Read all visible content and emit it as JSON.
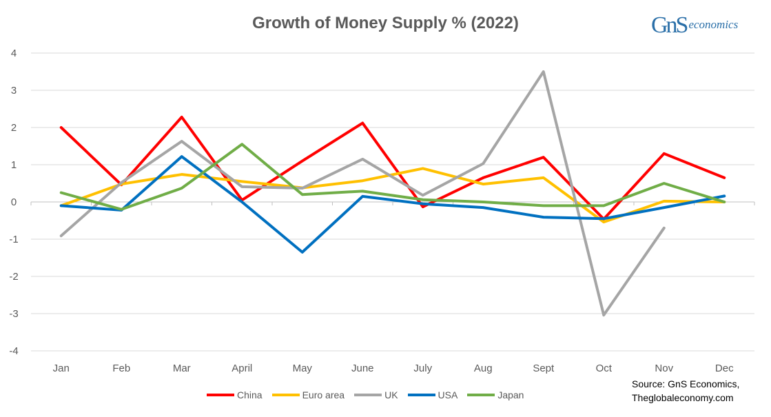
{
  "chart_data": {
    "type": "line",
    "title": "Growth of Money Supply % (2022)",
    "categories": [
      "Jan",
      "Feb",
      "Mar",
      "April",
      "May",
      "June",
      "July",
      "Aug",
      "Sept",
      "Oct",
      "Nov",
      "Dec"
    ],
    "ylim": [
      -4,
      4
    ],
    "yticks": [
      "4",
      "3",
      "2",
      "1",
      "0",
      "-1",
      "-2",
      "-3",
      "-4"
    ],
    "grid": true,
    "legend_position": "bottom",
    "series": [
      {
        "name": "China",
        "color": "#ff0000",
        "values": [
          2.0,
          0.46,
          2.28,
          0.05,
          1.1,
          2.12,
          -0.13,
          0.65,
          1.2,
          -0.46,
          1.3,
          0.65
        ]
      },
      {
        "name": "Euro area",
        "color": "#ffc000",
        "values": [
          -0.1,
          0.48,
          0.74,
          0.55,
          0.38,
          0.57,
          0.9,
          0.48,
          0.65,
          -0.54,
          0.02,
          0.0
        ]
      },
      {
        "name": "UK",
        "color": "#a5a5a5",
        "values": [
          -0.91,
          0.52,
          1.63,
          0.41,
          0.37,
          1.15,
          0.18,
          1.03,
          3.5,
          -3.04,
          -0.7,
          null
        ]
      },
      {
        "name": "USA",
        "color": "#0070c0",
        "values": [
          -0.1,
          -0.22,
          1.22,
          0.0,
          -1.35,
          0.15,
          -0.05,
          -0.15,
          -0.41,
          -0.45,
          -0.15,
          0.16
        ]
      },
      {
        "name": "Japan",
        "color": "#70ad47",
        "values": [
          0.25,
          -0.2,
          0.37,
          1.55,
          0.2,
          0.29,
          0.06,
          0.0,
          -0.1,
          -0.1,
          0.5,
          0.0
        ]
      }
    ]
  },
  "logo": {
    "text": "GnS economics"
  },
  "source": {
    "line1": "Source: GnS Economics,",
    "line2": "Theglobaleconomy.com"
  }
}
